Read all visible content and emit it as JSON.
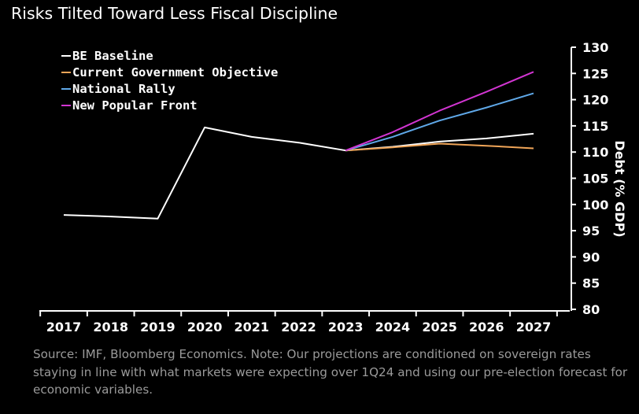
{
  "title": "Risks Tilted Toward Less Fiscal Discipline",
  "footnote": "Source: IMF, Bloomberg Economics. Note: Our projections are conditioned on sovereign rates staying in line with what markets were expecting over 1Q24 and using our pre-election forecast for economic variables.",
  "colors": {
    "background": "#000000",
    "BE Baseline": "#ffffff",
    "Current Government Objective": "#f0a558",
    "National Rally": "#5fa8e8",
    "New Popular Front": "#d235d2"
  },
  "chart_data": {
    "type": "line",
    "title": "Risks Tilted Toward Less Fiscal Discipline",
    "xlabel": "",
    "ylabel": "Debt (% GDP)",
    "x": [
      "2017",
      "2018",
      "2019",
      "2020",
      "2021",
      "2022",
      "2023",
      "2024",
      "2025",
      "2026",
      "2027"
    ],
    "ylim": [
      80,
      130
    ],
    "yticks": [
      80,
      85,
      90,
      95,
      100,
      105,
      110,
      115,
      120,
      125,
      130
    ],
    "y_axis_side": "right",
    "grid": false,
    "legend_position": "top-left",
    "series": [
      {
        "name": "BE Baseline",
        "values": [
          98.0,
          97.7,
          97.3,
          114.7,
          112.9,
          111.8,
          110.3,
          111.0,
          112.0,
          112.6,
          113.5
        ]
      },
      {
        "name": "Current Government Objective",
        "values": [
          null,
          null,
          null,
          null,
          null,
          null,
          110.3,
          110.9,
          111.6,
          111.2,
          110.7
        ]
      },
      {
        "name": "National Rally",
        "values": [
          null,
          null,
          null,
          null,
          null,
          null,
          110.3,
          112.9,
          116.0,
          118.5,
          121.2
        ]
      },
      {
        "name": "New Popular Front",
        "values": [
          null,
          null,
          null,
          null,
          null,
          null,
          110.3,
          113.8,
          117.9,
          121.5,
          125.3
        ]
      }
    ]
  }
}
